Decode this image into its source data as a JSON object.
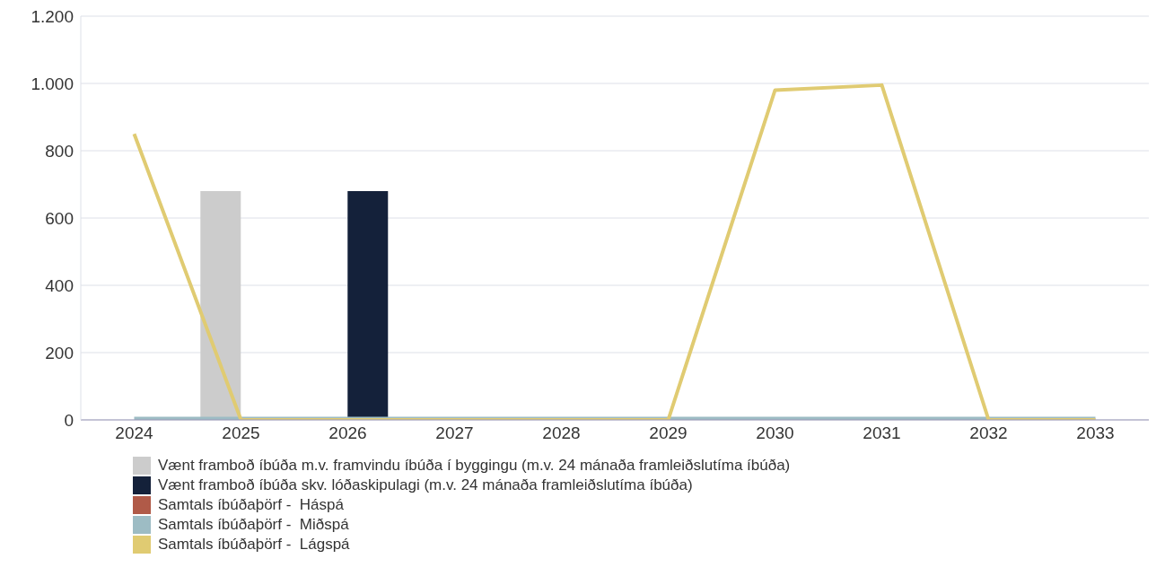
{
  "chart_data": {
    "type": "bar",
    "categories": [
      "2024",
      "2025",
      "2026",
      "2027",
      "2028",
      "2029",
      "2030",
      "2031",
      "2032",
      "2033"
    ],
    "series": [
      {
        "name": "Vænt framboð íbúða m.v. framvindu íbúða í byggingu (m.v. 24 mánaða framleiðslutíma íbúða)",
        "color": "#cccccc",
        "values": [
          null,
          680,
          null,
          null,
          null,
          null,
          null,
          null,
          null,
          null
        ]
      },
      {
        "name": "Vænt framboð íbúða skv. lóðaskipulagi (m.v. 24 mánaða framleiðslutíma íbúða)",
        "color": "#14213a",
        "values": [
          null,
          null,
          680,
          null,
          null,
          null,
          null,
          null,
          null,
          null
        ]
      },
      {
        "name": "Samtals íbúðaþörf -  Háspá",
        "type": "line",
        "color": "#b05a48",
        "values": [
          null,
          null,
          null,
          null,
          null,
          null,
          null,
          null,
          null,
          null
        ]
      },
      {
        "name": "Samtals íbúðaþörf -  Miðspá",
        "type": "line",
        "color": "#9dbcc4",
        "values": [
          0,
          0,
          0,
          0,
          0,
          0,
          0,
          0,
          0,
          0
        ]
      },
      {
        "name": "Samtals íbúðaþörf -  Lágspá",
        "type": "line",
        "color": "#e0cb72",
        "values": [
          850,
          0,
          0,
          0,
          0,
          0,
          980,
          995,
          0,
          0
        ]
      }
    ],
    "ylim": [
      0,
      1200
    ],
    "yticks": [
      0,
      200,
      400,
      600,
      800,
      {
        "value": 1000,
        "label": "1.000"
      },
      {
        "value": 1200,
        "label": "1.200"
      }
    ],
    "grid": "y",
    "legend": "bottom",
    "marker": "none"
  }
}
